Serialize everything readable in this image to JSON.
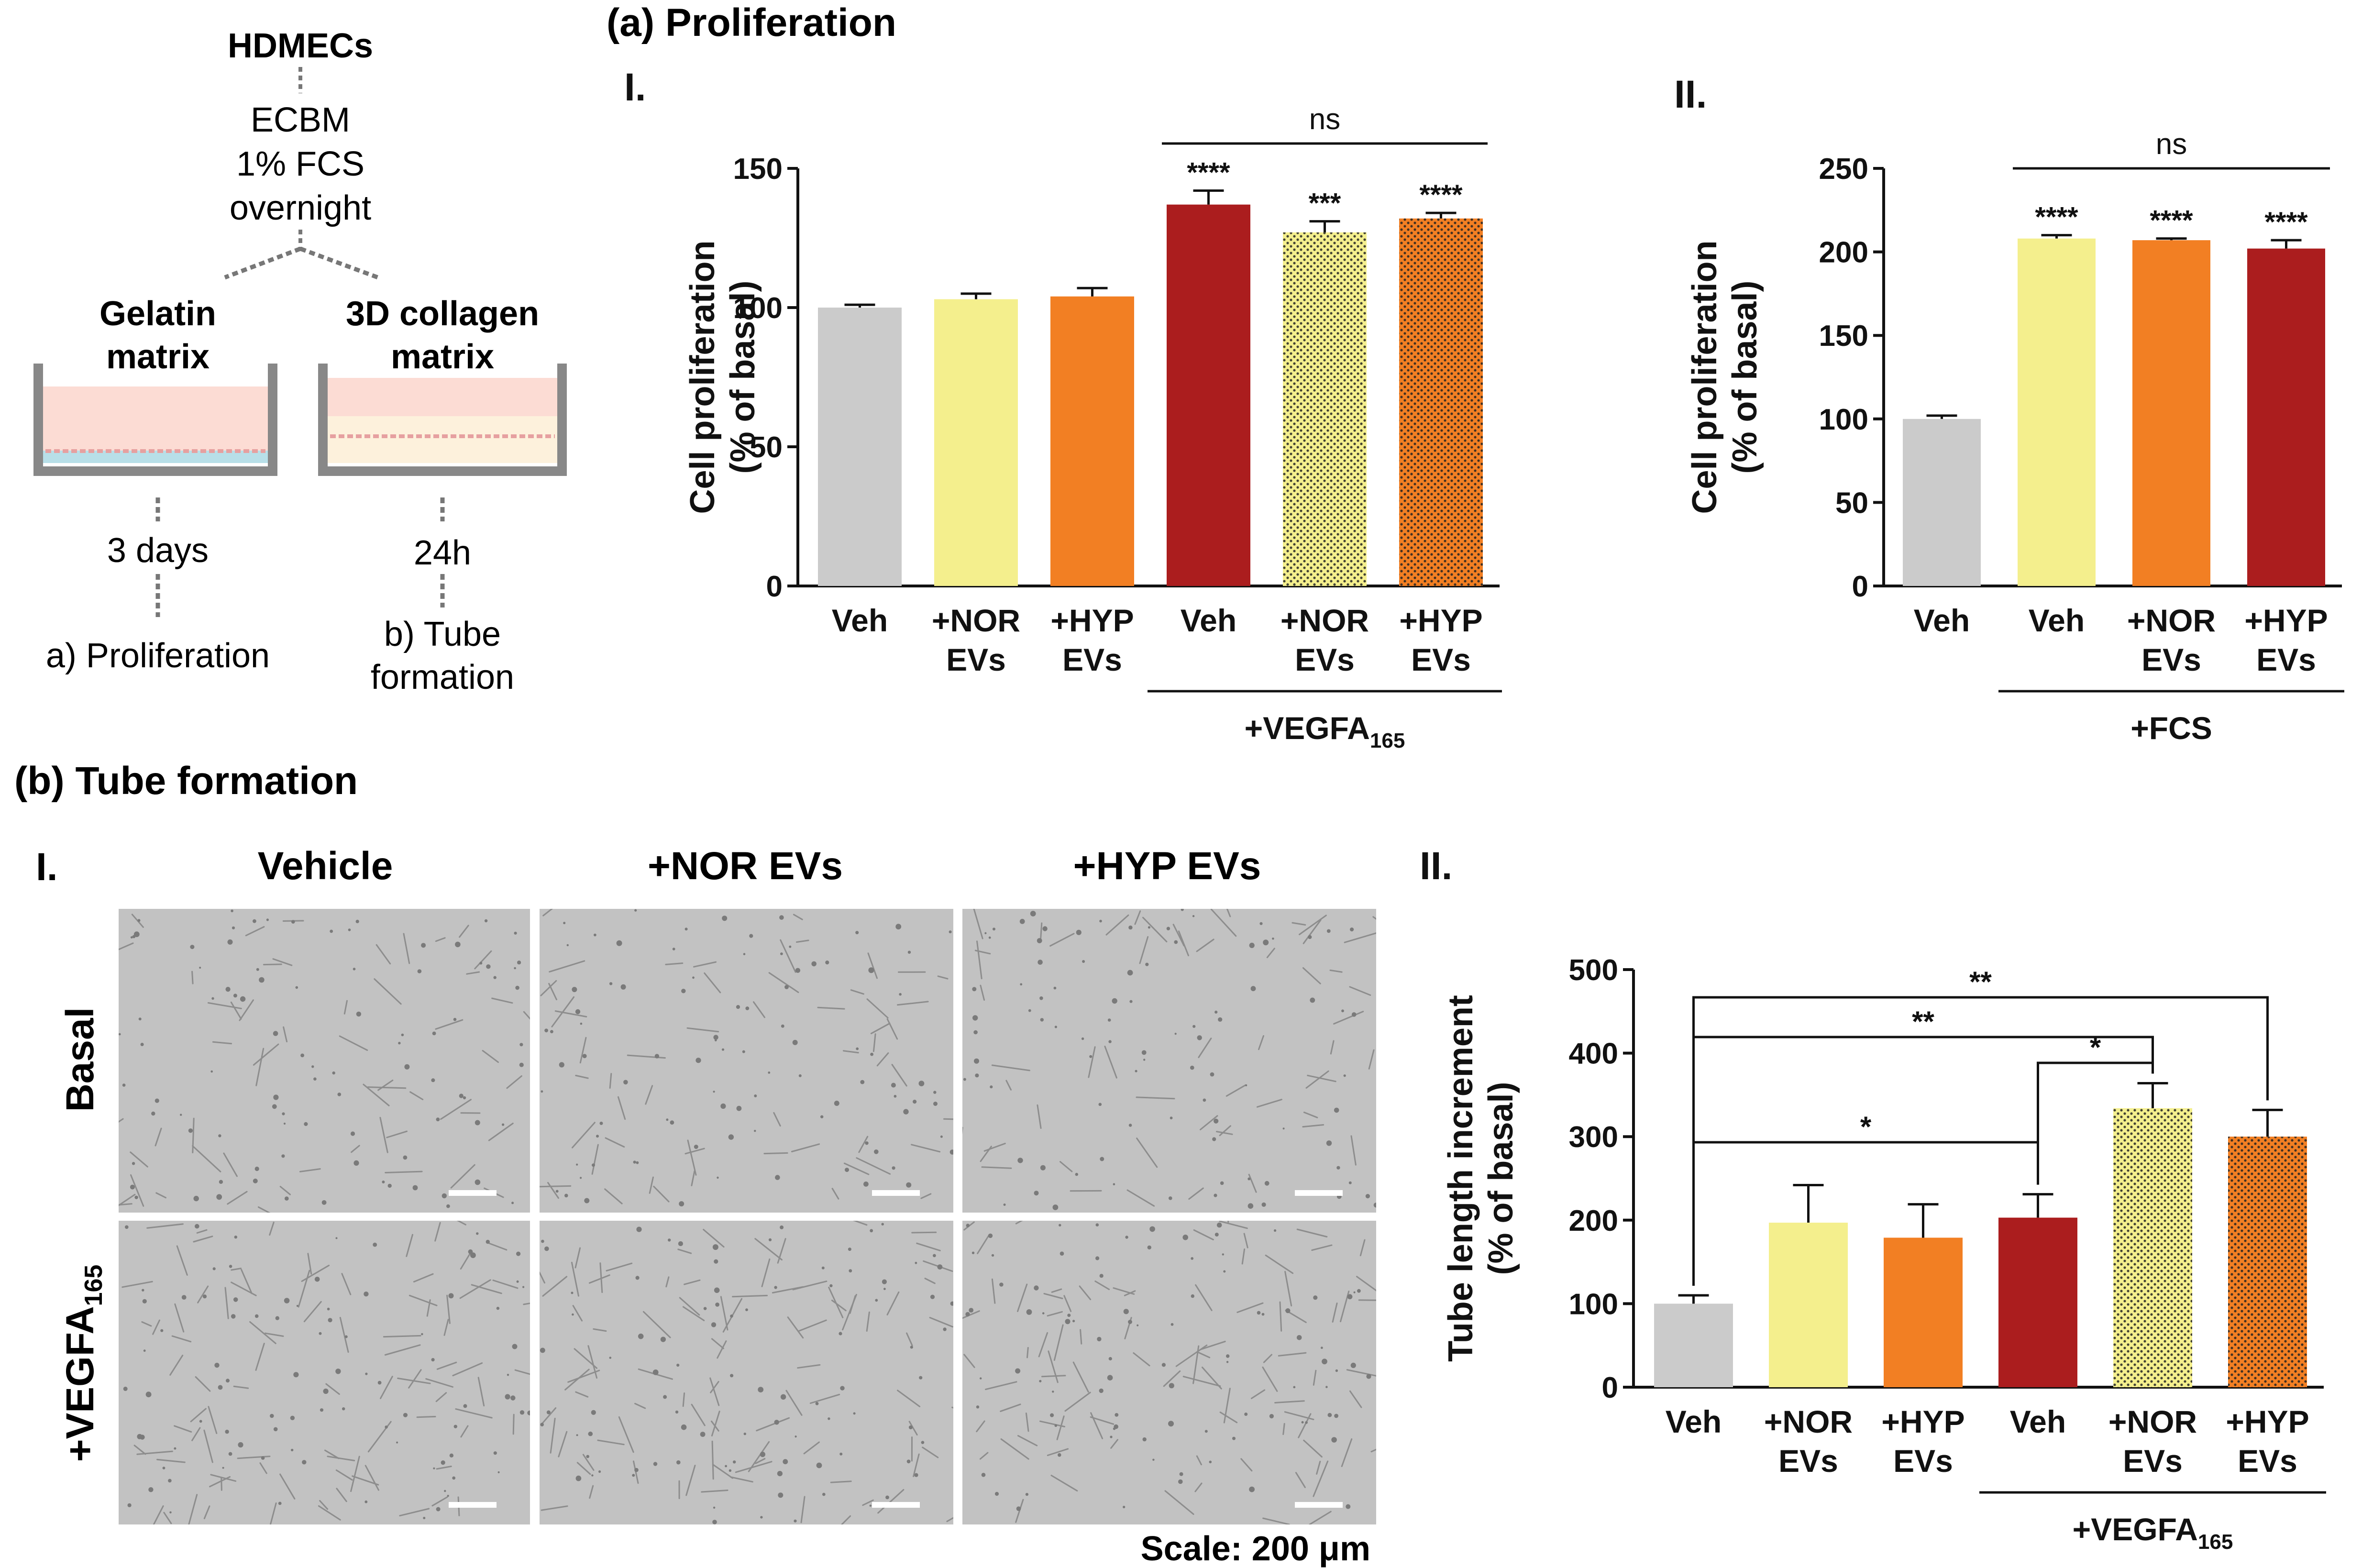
{
  "figure": {
    "panel_a_title": "(a) Proliferation",
    "panel_b_title": "(b) Tube formation",
    "scale_text": "Scale: 200 μm"
  },
  "schematic": {
    "cells": "HDMECs",
    "medium_lines": [
      "ECBM",
      "1% FCS",
      "overnight"
    ],
    "left_matrix": [
      "Gelatin",
      "matrix"
    ],
    "right_matrix": [
      "3D collagen",
      "matrix"
    ],
    "left_time": "3 days",
    "right_time": "24h",
    "left_readout": "a) Proliferation",
    "right_readout": [
      "b) Tube",
      "formation"
    ]
  },
  "colors": {
    "grey": "#cbcbcb",
    "yellow": "#f4ef8d",
    "orange": "#f27f23",
    "red": "#ab1d1e",
    "dots": "#222222"
  },
  "micrographs": {
    "panel_label": "I.",
    "columns": [
      "Vehicle",
      "+NOR EVs",
      "+HYP EVs"
    ],
    "row_basal": "Basal",
    "row_vegf": "+VEGFA",
    "row_vegf_sub": "165"
  },
  "chart_data": [
    {
      "id": "a-I",
      "type": "bar",
      "panel_label": "I.",
      "ylabel": [
        "Cell proliferation",
        "(% of basal)"
      ],
      "ylim": [
        0,
        150
      ],
      "yticks": [
        0,
        50,
        100,
        150
      ],
      "categories": [
        [
          "Veh"
        ],
        [
          "+NOR",
          "EVs"
        ],
        [
          "+HYP",
          "EVs"
        ],
        [
          "Veh"
        ],
        [
          "+NOR",
          "EVs"
        ],
        [
          "+HYP",
          "EVs"
        ]
      ],
      "values": [
        100,
        103,
        104,
        137,
        127,
        132
      ],
      "errors": [
        1,
        2,
        3,
        5,
        4,
        2
      ],
      "fill": [
        "grey",
        "yellow",
        "orange",
        "red",
        "yellow",
        "orange"
      ],
      "dotted": [
        false,
        false,
        false,
        false,
        true,
        true
      ],
      "significance": [
        "",
        "",
        "",
        "****",
        "***",
        "****"
      ],
      "group_label": "+VEGFA",
      "group_sub": "165",
      "group_range": [
        3,
        5
      ],
      "comparisons": [
        {
          "label": "ns",
          "from": 3,
          "to": 5
        }
      ]
    },
    {
      "id": "a-II",
      "type": "bar",
      "panel_label": "II.",
      "ylabel": [
        "Cell proliferation",
        "(% of basal)"
      ],
      "ylim": [
        0,
        250
      ],
      "yticks": [
        0,
        50,
        100,
        150,
        200,
        250
      ],
      "categories": [
        [
          "Veh"
        ],
        [
          "Veh"
        ],
        [
          "+NOR",
          "EVs"
        ],
        [
          "+HYP",
          "EVs"
        ]
      ],
      "values": [
        100,
        208,
        207,
        202
      ],
      "errors": [
        2,
        2,
        1,
        5
      ],
      "fill": [
        "grey",
        "yellow",
        "orange",
        "red"
      ],
      "dotted": [
        false,
        false,
        false,
        false
      ],
      "significance": [
        "",
        "****",
        "****",
        "****"
      ],
      "group_label": "+FCS",
      "group_sub": "",
      "group_range": [
        1,
        3
      ],
      "comparisons": [
        {
          "label": "ns",
          "from": 1,
          "to": 3
        }
      ]
    },
    {
      "id": "b-II",
      "type": "bar",
      "panel_label": "II.",
      "ylabel": [
        "Tube length increment",
        "(% of basal)"
      ],
      "ylim": [
        0,
        500
      ],
      "yticks": [
        0,
        100,
        200,
        300,
        400,
        500
      ],
      "categories": [
        [
          "Veh"
        ],
        [
          "+NOR",
          "EVs"
        ],
        [
          "+HYP",
          "EVs"
        ],
        [
          "Veh"
        ],
        [
          "+NOR",
          "EVs"
        ],
        [
          "+HYP",
          "EVs"
        ]
      ],
      "values": [
        100,
        197,
        179,
        203,
        334,
        300
      ],
      "errors": [
        10,
        45,
        40,
        28,
        30,
        32
      ],
      "fill": [
        "grey",
        "yellow",
        "orange",
        "red",
        "yellow",
        "orange"
      ],
      "dotted": [
        false,
        false,
        false,
        false,
        true,
        true
      ],
      "significance": [
        "",
        "",
        "",
        "",
        "",
        ""
      ],
      "group_label": "+VEGFA",
      "group_sub": "165",
      "group_range": [
        3,
        5
      ],
      "comparisons": [
        {
          "label": "**",
          "from": 0,
          "to": 5
        },
        {
          "label": "**",
          "from": 0,
          "to": 4
        },
        {
          "label": "*",
          "from": 3,
          "to": 4
        },
        {
          "label": "*",
          "from": 0,
          "to": 3
        }
      ]
    }
  ]
}
